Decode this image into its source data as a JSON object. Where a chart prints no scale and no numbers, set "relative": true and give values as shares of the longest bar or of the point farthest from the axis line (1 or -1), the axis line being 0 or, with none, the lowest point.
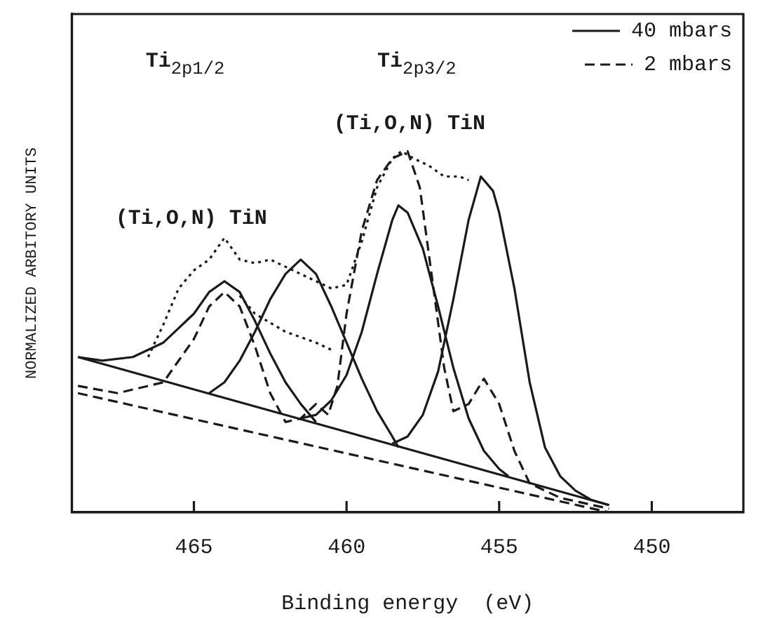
{
  "chart_data": {
    "type": "line",
    "relative": true,
    "xlabel": "Binding energy  (eV)",
    "ylabel": "NORMALIZED ARBITORY UNITS",
    "xlim": [
      469,
      447
    ],
    "xticks": [
      465,
      460,
      455,
      450
    ],
    "tick_labels": "x",
    "legend": "top right",
    "annotations": [
      "Ti$_{2p1/2}$",
      "Ti$_{2p3/2}$",
      "(Ti,O,N) TiN",
      "(Ti,O,N) TiN"
    ],
    "series": [
      {
        "name": "40 mbars",
        "color": "#1a1a1a",
        "line_style": "solid",
        "x": [
          468.8,
          468,
          467,
          466,
          465,
          464.5,
          464,
          463.5,
          463,
          462.5,
          462,
          461.5,
          461
        ],
        "values": [
          0.43,
          0.42,
          0.43,
          0.47,
          0.55,
          0.61,
          0.64,
          0.61,
          0.53,
          0.44,
          0.36,
          0.3,
          0.25
        ]
      },
      {
        "color": "#1a1a1a",
        "line_style": "solid",
        "x": [
          464.5,
          464,
          463.5,
          463,
          462.5,
          462,
          461.5,
          461,
          460.5,
          460,
          459.5,
          459,
          458.5,
          458.3
        ],
        "values": [
          0.33,
          0.36,
          0.42,
          0.5,
          0.59,
          0.66,
          0.7,
          0.66,
          0.57,
          0.47,
          0.37,
          0.28,
          0.21,
          0.18
        ]
      },
      {
        "color": "#1a1a1a",
        "line_style": "solid",
        "x": [
          461.5,
          461,
          460.5,
          460,
          459.5,
          459,
          458.5,
          458.3,
          458,
          457.5,
          457,
          456.5,
          456,
          455.5,
          455,
          454.7
        ],
        "values": [
          0.26,
          0.27,
          0.31,
          0.38,
          0.5,
          0.66,
          0.81,
          0.85,
          0.83,
          0.73,
          0.57,
          0.4,
          0.26,
          0.17,
          0.12,
          0.1
        ]
      },
      {
        "color": "#1a1a1a",
        "line_style": "solid",
        "x": [
          458.5,
          458,
          457.5,
          457,
          456.5,
          456,
          455.6,
          455.2,
          455,
          454.5,
          454,
          453.5,
          453,
          452.5,
          452,
          451.4
        ],
        "values": [
          0.19,
          0.21,
          0.27,
          0.39,
          0.59,
          0.81,
          0.93,
          0.89,
          0.83,
          0.62,
          0.36,
          0.18,
          0.1,
          0.06,
          0.035,
          0.02
        ]
      },
      {
        "color": "#1a1a1a",
        "line_style": "solid",
        "x": [
          468.8,
          451.4
        ],
        "values": [
          0.43,
          0.02
        ]
      },
      {
        "name": "2 mbars",
        "color": "#1a1a1a",
        "line_style": "dashed",
        "x": [
          468.8,
          467.5,
          466,
          465,
          464.5,
          464,
          463.5,
          463,
          462.5,
          462,
          461.5,
          461,
          460.6,
          460.3,
          460,
          459.5,
          459,
          458.5,
          458,
          457.6,
          457.2,
          456.8,
          456.5,
          456,
          455.5,
          455,
          454.5,
          454,
          453,
          451.4
        ],
        "values": [
          0.35,
          0.33,
          0.36,
          0.48,
          0.57,
          0.61,
          0.57,
          0.46,
          0.33,
          0.25,
          0.26,
          0.3,
          0.27,
          0.35,
          0.55,
          0.78,
          0.92,
          0.98,
          1,
          0.9,
          0.65,
          0.4,
          0.28,
          0.3,
          0.37,
          0.3,
          0.17,
          0.08,
          0.04,
          0.01
        ]
      },
      {
        "color": "#1a1a1a",
        "line_style": "dashed",
        "x": [
          468.8,
          451.4
        ],
        "values": [
          0.33,
          0.0
        ]
      },
      {
        "color": "#1a1a1a",
        "line_style": "dotted",
        "x": [
          466.5,
          466,
          465.5,
          465,
          464.5,
          464,
          463.5,
          463,
          462.5,
          462,
          461.5,
          461,
          460.5,
          460,
          459.5,
          459,
          458.5,
          458.2,
          457.8,
          457.3,
          456.8,
          456.3,
          456
        ],
        "values": [
          0.43,
          0.52,
          0.62,
          0.67,
          0.7,
          0.76,
          0.7,
          0.69,
          0.7,
          0.68,
          0.66,
          0.64,
          0.62,
          0.63,
          0.75,
          0.9,
          0.98,
          1,
          0.98,
          0.96,
          0.93,
          0.93,
          0.92
        ]
      },
      {
        "color": "#1a1a1a",
        "line_style": "dotted",
        "x": [
          463.5,
          463,
          462,
          461,
          460.5
        ],
        "values": [
          0.6,
          0.55,
          0.5,
          0.47,
          0.45
        ]
      }
    ]
  }
}
